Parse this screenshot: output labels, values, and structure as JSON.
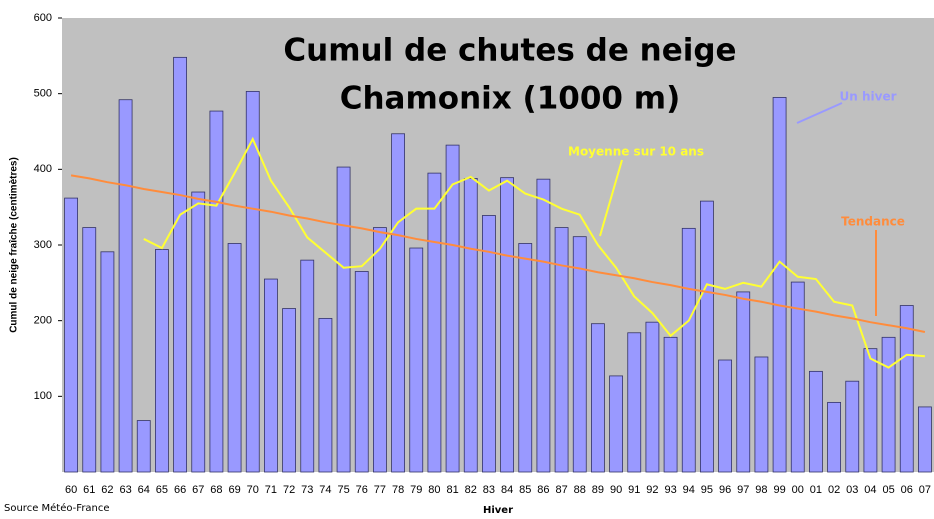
{
  "chart_data": {
    "type": "bar",
    "title": [
      "Cumul de chutes de neige",
      "Chamonix (1000 m)"
    ],
    "y_label": "Cumul de neige fraîche (centimètres)",
    "x_label": "Hiver",
    "source": "Source Météo-France",
    "categories": [
      "60",
      "61",
      "62",
      "63",
      "64",
      "65",
      "66",
      "67",
      "68",
      "69",
      "70",
      "71",
      "72",
      "73",
      "74",
      "75",
      "76",
      "77",
      "78",
      "79",
      "80",
      "81",
      "82",
      "83",
      "84",
      "85",
      "86",
      "87",
      "88",
      "89",
      "90",
      "91",
      "92",
      "93",
      "94",
      "95",
      "96",
      "97",
      "98",
      "99",
      "00",
      "01",
      "02",
      "03",
      "04",
      "05",
      "06",
      "07"
    ],
    "series": [
      {
        "name": "Un hiver",
        "type": "bar",
        "color": "#9999ff",
        "values": [
          362,
          323,
          291,
          492,
          68,
          294,
          548,
          370,
          477,
          302,
          503,
          255,
          216,
          280,
          203,
          403,
          265,
          323,
          447,
          296,
          395,
          432,
          388,
          339,
          389,
          302,
          387,
          323,
          311,
          196,
          127,
          184,
          198,
          178,
          322,
          358,
          148,
          238,
          152,
          495,
          251,
          133,
          92,
          120,
          163,
          178,
          220,
          86
        ]
      },
      {
        "name": "Moyenne sur 10 ans",
        "type": "line",
        "color": "#ffff33",
        "values": [
          null,
          null,
          null,
          null,
          308,
          296,
          340,
          355,
          352,
          395,
          440,
          385,
          350,
          310,
          290,
          270,
          272,
          295,
          330,
          348,
          348,
          380,
          390,
          372,
          385,
          368,
          360,
          348,
          340,
          300,
          270,
          232,
          210,
          180,
          200,
          248,
          242,
          250,
          245,
          278,
          258,
          255,
          225,
          220,
          150,
          138,
          155,
          153
        ]
      },
      {
        "name": "Tendance",
        "type": "line",
        "color": "#ff8c3c",
        "values": [
          392,
          388,
          383,
          379,
          374,
          370,
          366,
          361,
          357,
          352,
          348,
          344,
          339,
          335,
          330,
          326,
          322,
          317,
          313,
          308,
          304,
          300,
          295,
          291,
          286,
          282,
          278,
          273,
          269,
          264,
          260,
          256,
          251,
          247,
          242,
          238,
          234,
          229,
          225,
          220,
          216,
          212,
          207,
          203,
          198,
          194,
          190,
          185
        ]
      }
    ],
    "ylim": [
      0,
      600
    ],
    "yticks": [
      100,
      200,
      300,
      400,
      500,
      600
    ],
    "grid": false
  }
}
